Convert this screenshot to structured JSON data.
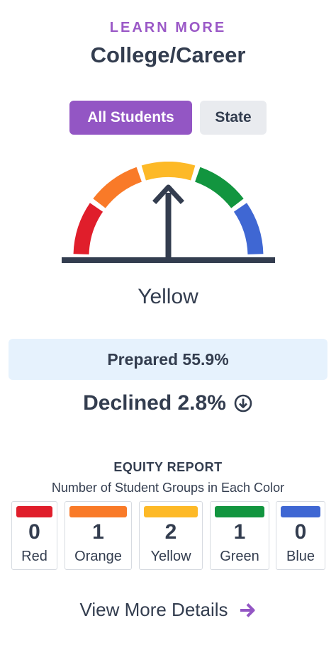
{
  "header": {
    "eyebrow": "LEARN MORE",
    "title": "College/Career"
  },
  "toggles": {
    "all_students": "All Students",
    "state": "State",
    "selected": "All Students"
  },
  "gauge": {
    "status": "Yellow",
    "pointer_level": "yellow",
    "segment_colors": {
      "red": "#e01e2b",
      "orange": "#f97a28",
      "yellow": "#fdb927",
      "green": "#12953f",
      "blue": "#3f67d3"
    },
    "needle_color": "#333d4f"
  },
  "prepared": {
    "text": "Prepared 55.9%"
  },
  "change": {
    "text": "Declined 2.8%",
    "icon": "arrow-down-circle-icon"
  },
  "equity": {
    "heading": "EQUITY REPORT",
    "subtitle": "Number of Student Groups in Each Color",
    "groups": [
      {
        "label": "Red",
        "count": "0",
        "color": "#e01e2b"
      },
      {
        "label": "Orange",
        "count": "1",
        "color": "#f97a28"
      },
      {
        "label": "Yellow",
        "count": "2",
        "color": "#fdb927"
      },
      {
        "label": "Green",
        "count": "1",
        "color": "#12953f"
      },
      {
        "label": "Blue",
        "count": "0",
        "color": "#3f67d3"
      }
    ]
  },
  "footer": {
    "view_more": "View More Details",
    "icon": "arrow-right-icon",
    "icon_color": "#9356c4"
  }
}
